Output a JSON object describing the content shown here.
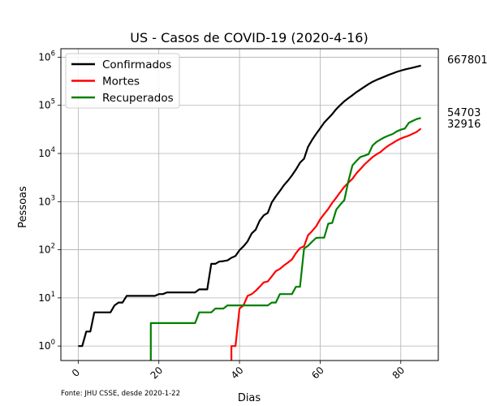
{
  "chart_data": {
    "type": "line",
    "title": "US - Casos de COVID-19 (2020-4-16)",
    "xlabel": "Dias",
    "ylabel": "Pessoas",
    "yscale": "log",
    "xlim": [
      -4.3,
      89.3
    ],
    "ylim": [
      0.5,
      1500000
    ],
    "xticks": [
      0,
      20,
      40,
      60,
      80
    ],
    "yticks": [
      {
        "value": 1,
        "exp": "0"
      },
      {
        "value": 10,
        "exp": "1"
      },
      {
        "value": 100,
        "exp": "2"
      },
      {
        "value": 1000,
        "exp": "3"
      },
      {
        "value": 10000,
        "exp": "4"
      },
      {
        "value": 100000,
        "exp": "5"
      },
      {
        "value": 1000000,
        "exp": "6"
      }
    ],
    "tick_base": "10",
    "grid": true,
    "legend_position": "upper-left",
    "source_note": "Fonte: JHU CSSE, desde 2020-1-22",
    "end_labels": [
      "667801",
      "54703",
      "32916"
    ],
    "series": [
      {
        "name": "Confirmados",
        "color": "#000000",
        "x": [
          0,
          1,
          2,
          3,
          4,
          5,
          6,
          7,
          8,
          9,
          10,
          11,
          12,
          13,
          14,
          15,
          16,
          17,
          18,
          19,
          20,
          21,
          22,
          23,
          24,
          25,
          26,
          27,
          28,
          29,
          30,
          31,
          32,
          33,
          34,
          35,
          36,
          37,
          38,
          39,
          40,
          41,
          42,
          43,
          44,
          45,
          46,
          47,
          48,
          49,
          50,
          51,
          52,
          53,
          54,
          55,
          56,
          57,
          58,
          59,
          60,
          61,
          62,
          63,
          64,
          65,
          66,
          67,
          68,
          69,
          70,
          71,
          72,
          73,
          74,
          75,
          76,
          77,
          78,
          79,
          80,
          81,
          82,
          83,
          84,
          85
        ],
        "values": [
          1,
          1,
          2,
          2,
          5,
          5,
          5,
          5,
          5,
          7,
          8,
          8,
          11,
          11,
          11,
          11,
          11,
          11,
          11,
          11,
          12,
          12,
          13,
          13,
          13,
          13,
          13,
          13,
          13,
          13,
          15,
          15,
          15,
          51,
          51,
          57,
          58,
          60,
          68,
          74,
          98,
          118,
          149,
          217,
          262,
          402,
          518,
          583,
          959,
          1281,
          1663,
          2179,
          2727,
          3499,
          4632,
          6421,
          7786,
          13680,
          19101,
          25493,
          33276,
          43847,
          53740,
          65778,
          83836,
          101657,
          121478,
          140886,
          161807,
          188172,
          213372,
          243453,
          275586,
          308850,
          337072,
          366667,
          396223,
          429052,
          461437,
          496535,
          526396,
          555313,
          580619,
          607670,
          636350,
          667801
        ]
      },
      {
        "name": "Mortes",
        "color": "#ff0000",
        "x": [
          38,
          39,
          40,
          41,
          42,
          43,
          44,
          45,
          46,
          47,
          48,
          49,
          50,
          51,
          52,
          53,
          54,
          55,
          56,
          57,
          58,
          59,
          60,
          61,
          62,
          63,
          64,
          65,
          66,
          67,
          68,
          69,
          70,
          71,
          72,
          73,
          74,
          75,
          76,
          77,
          78,
          79,
          80,
          81,
          82,
          83,
          84,
          85
        ],
        "values": [
          1,
          1,
          6,
          7,
          11,
          12,
          14,
          17,
          21,
          22,
          28,
          36,
          40,
          47,
          54,
          63,
          85,
          108,
          118,
          200,
          244,
          307,
          427,
          552,
          706,
          942,
          1209,
          1581,
          2026,
          2467,
          2978,
          3873,
          4757,
          5926,
          7087,
          8407,
          9619,
          10783,
          12722,
          14695,
          16478,
          18586,
          20463,
          22020,
          23529,
          25831,
          28325,
          32916
        ]
      },
      {
        "name": "Recuperados",
        "color": "#008000",
        "x": [
          18,
          19,
          20,
          21,
          22,
          23,
          24,
          25,
          26,
          27,
          28,
          29,
          30,
          31,
          32,
          33,
          34,
          35,
          36,
          37,
          38,
          39,
          40,
          41,
          42,
          43,
          44,
          45,
          46,
          47,
          48,
          49,
          50,
          51,
          52,
          53,
          54,
          55,
          56,
          57,
          58,
          59,
          60,
          61,
          62,
          63,
          64,
          65,
          66,
          67,
          68,
          69,
          70,
          71,
          72,
          73,
          74,
          75,
          76,
          77,
          78,
          79,
          80,
          81,
          82,
          83,
          84,
          85
        ],
        "values": [
          3,
          3,
          3,
          3,
          3,
          3,
          3,
          3,
          3,
          3,
          3,
          3,
          5,
          5,
          5,
          5,
          6,
          6,
          6,
          7,
          7,
          7,
          7,
          7,
          7,
          7,
          7,
          7,
          7,
          7,
          8,
          8,
          12,
          12,
          12,
          12,
          17,
          17,
          106,
          121,
          147,
          176,
          178,
          178,
          348,
          361,
          681,
          869,
          1072,
          2665,
          5644,
          7024,
          8474,
          9001,
          9707,
          14652,
          17448,
          19581,
          21763,
          23559,
          25410,
          28790,
          31270,
          32988,
          43482,
          47763,
          52096,
          54703
        ]
      }
    ]
  }
}
